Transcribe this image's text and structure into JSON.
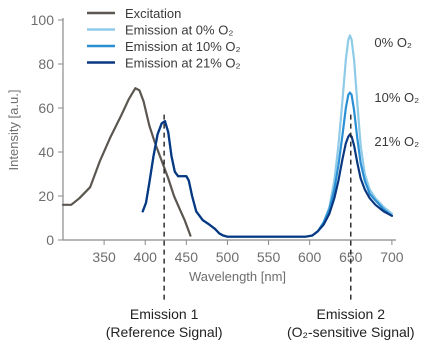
{
  "chart_data": {
    "type": "line",
    "xlabel": "Wavelength [nm]",
    "ylabel": "Intensity [a.u.]",
    "xlim": [
      300,
      705
    ],
    "ylim": [
      0,
      100
    ],
    "x_ticks": [
      350,
      400,
      450,
      500,
      550,
      600,
      650,
      700
    ],
    "y_ticks": [
      0,
      20,
      40,
      60,
      80,
      100
    ],
    "grid": false,
    "legend_position": "top-left",
    "series": [
      {
        "name": "Excitation",
        "color": "#5b5750",
        "points": [
          [
            300,
            16
          ],
          [
            310,
            16
          ],
          [
            320,
            19
          ],
          [
            333,
            24
          ],
          [
            345,
            36
          ],
          [
            358,
            47
          ],
          [
            370,
            56
          ],
          [
            380,
            64
          ],
          [
            388,
            69
          ],
          [
            393,
            68
          ],
          [
            398,
            63
          ],
          [
            405,
            52
          ],
          [
            412,
            44
          ],
          [
            420,
            36
          ],
          [
            428,
            28
          ],
          [
            435,
            20
          ],
          [
            442,
            14
          ],
          [
            448,
            9
          ],
          [
            452,
            5
          ],
          [
            455,
            2
          ]
        ]
      },
      {
        "name": "Emission at 0% O₂",
        "color": "#8fcbe8",
        "points": [
          [
            397,
            13
          ],
          [
            401,
            17
          ],
          [
            405,
            26
          ],
          [
            410,
            38
          ],
          [
            415,
            48
          ],
          [
            420,
            53
          ],
          [
            424,
            54
          ],
          [
            428,
            49
          ],
          [
            432,
            38
          ],
          [
            436,
            31
          ],
          [
            440,
            29
          ],
          [
            444,
            29
          ],
          [
            450,
            29
          ],
          [
            453,
            27
          ],
          [
            457,
            20
          ],
          [
            462,
            13
          ],
          [
            470,
            9
          ],
          [
            478,
            7
          ],
          [
            485,
            5
          ],
          [
            490,
            3
          ],
          [
            495,
            2
          ],
          [
            500,
            1.5
          ],
          [
            520,
            1.5
          ],
          [
            560,
            1.5
          ],
          [
            595,
            1.5
          ],
          [
            603,
            2
          ],
          [
            610,
            4
          ],
          [
            617,
            8
          ],
          [
            624,
            15
          ],
          [
            630,
            27
          ],
          [
            635,
            43
          ],
          [
            640,
            64
          ],
          [
            644,
            82
          ],
          [
            647,
            91
          ],
          [
            649,
            93
          ],
          [
            651,
            91
          ],
          [
            654,
            82
          ],
          [
            658,
            62
          ],
          [
            662,
            43
          ],
          [
            667,
            30
          ],
          [
            673,
            23
          ],
          [
            680,
            19
          ],
          [
            690,
            15
          ],
          [
            700,
            12
          ]
        ]
      },
      {
        "name": "Emission at 10% O₂",
        "color": "#2b8fd3",
        "points": [
          [
            397,
            13
          ],
          [
            401,
            17
          ],
          [
            405,
            26
          ],
          [
            410,
            38
          ],
          [
            415,
            48
          ],
          [
            420,
            53
          ],
          [
            424,
            54
          ],
          [
            428,
            49
          ],
          [
            432,
            38
          ],
          [
            436,
            31
          ],
          [
            440,
            29
          ],
          [
            444,
            29
          ],
          [
            450,
            29
          ],
          [
            453,
            27
          ],
          [
            457,
            20
          ],
          [
            462,
            13
          ],
          [
            470,
            9
          ],
          [
            478,
            7
          ],
          [
            485,
            5
          ],
          [
            490,
            3
          ],
          [
            495,
            2
          ],
          [
            500,
            1.5
          ],
          [
            520,
            1.5
          ],
          [
            560,
            1.5
          ],
          [
            595,
            1.5
          ],
          [
            603,
            2
          ],
          [
            610,
            4
          ],
          [
            617,
            8
          ],
          [
            624,
            14
          ],
          [
            630,
            23
          ],
          [
            635,
            34
          ],
          [
            640,
            48
          ],
          [
            644,
            60
          ],
          [
            647,
            66
          ],
          [
            649,
            67
          ],
          [
            651,
            66
          ],
          [
            654,
            59
          ],
          [
            658,
            46
          ],
          [
            662,
            35
          ],
          [
            667,
            27
          ],
          [
            673,
            21
          ],
          [
            680,
            18
          ],
          [
            690,
            14
          ],
          [
            700,
            11
          ]
        ]
      },
      {
        "name": "Emission at 21% O₂",
        "color": "#0a3880",
        "points": [
          [
            397,
            13
          ],
          [
            401,
            17
          ],
          [
            405,
            26
          ],
          [
            410,
            38
          ],
          [
            415,
            48
          ],
          [
            420,
            53
          ],
          [
            424,
            54
          ],
          [
            428,
            49
          ],
          [
            432,
            38
          ],
          [
            436,
            31
          ],
          [
            440,
            29
          ],
          [
            444,
            29
          ],
          [
            450,
            29
          ],
          [
            453,
            27
          ],
          [
            457,
            20
          ],
          [
            462,
            13
          ],
          [
            470,
            9
          ],
          [
            478,
            7
          ],
          [
            485,
            5
          ],
          [
            490,
            3
          ],
          [
            495,
            2
          ],
          [
            500,
            1.5
          ],
          [
            520,
            1.5
          ],
          [
            560,
            1.5
          ],
          [
            595,
            1.5
          ],
          [
            603,
            2
          ],
          [
            610,
            4
          ],
          [
            617,
            7
          ],
          [
            624,
            12
          ],
          [
            630,
            19
          ],
          [
            635,
            27
          ],
          [
            640,
            37
          ],
          [
            644,
            44
          ],
          [
            647,
            47
          ],
          [
            649,
            48
          ],
          [
            651,
            47
          ],
          [
            654,
            43
          ],
          [
            658,
            35
          ],
          [
            662,
            28
          ],
          [
            667,
            23
          ],
          [
            673,
            19
          ],
          [
            680,
            16
          ],
          [
            690,
            13
          ],
          [
            700,
            11
          ]
        ]
      }
    ],
    "annotations": [
      {
        "text": "0% O₂",
        "x": 652,
        "y": 90
      },
      {
        "text": "10% O₂",
        "x": 652,
        "y": 65
      },
      {
        "text": "21% O₂",
        "x": 652,
        "y": 45
      }
    ],
    "markers": [
      {
        "x": 423,
        "caption_line1": "Emission 1",
        "caption_line2": "(Reference Signal)"
      },
      {
        "x": 650,
        "caption_line1": "Emission 2",
        "caption_line2": "(O₂-sensitive Signal)"
      }
    ]
  }
}
